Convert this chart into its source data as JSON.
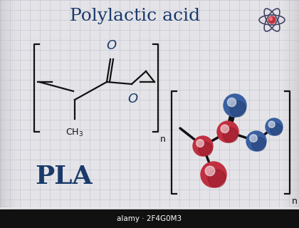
{
  "title": "Polylactic acid",
  "title_color": "#1a3a6b",
  "title_fontsize": 18,
  "bg_color": "#e0e0e0",
  "bg_gradient_top": "#d0d0d8",
  "bg_gradient_bot": "#c8c8d0",
  "grid_color": "#c0c0cc",
  "line_color": "#111111",
  "label_pla": "PLA",
  "label_pla_color": "#1a3a6b",
  "label_pla_fontsize": 26,
  "label_n": "n",
  "label_O_color": "#1a3a6b",
  "watermark": "alamy · 2F4G0M3",
  "atom_red": "#c03040",
  "atom_blue": "#3a5fa0",
  "atom_dark_red": "#801020",
  "atom_dark_blue": "#1a3060",
  "bond_color": "#111111"
}
